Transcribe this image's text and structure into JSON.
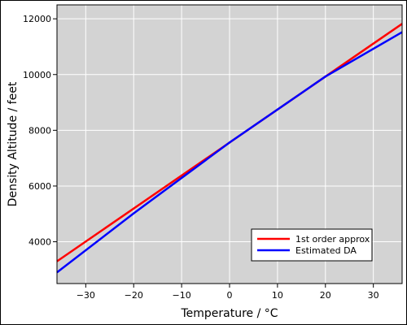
{
  "chart_data": {
    "type": "line",
    "xlabel": "Temperature / °C",
    "ylabel": "Density Altitude / feet",
    "xlim": [
      -36,
      36
    ],
    "ylim": [
      2500,
      12500
    ],
    "xticks": [
      -30,
      -20,
      -10,
      0,
      10,
      20,
      30
    ],
    "yticks": [
      4000,
      6000,
      8000,
      10000,
      12000
    ],
    "xtick_labels": [
      "−30",
      "−20",
      "−10",
      "0",
      "10",
      "20",
      "30"
    ],
    "ytick_labels": [
      "4000",
      "6000",
      "8000",
      "10000",
      "12000"
    ],
    "grid": true,
    "legend_position": "lower-right",
    "series": [
      {
        "name": "1st order approx",
        "color": "#ff0000",
        "x": [
          -36,
          36
        ],
        "y": [
          3300,
          11820
        ]
      },
      {
        "name": "Estimated DA",
        "color": "#0000ff",
        "x": [
          -36,
          -20,
          0,
          20,
          36
        ],
        "y": [
          2900,
          5020,
          7560,
          9930,
          11520
        ]
      }
    ],
    "plot_background": "#d3d3d3",
    "grid_color": "#ffffff"
  }
}
